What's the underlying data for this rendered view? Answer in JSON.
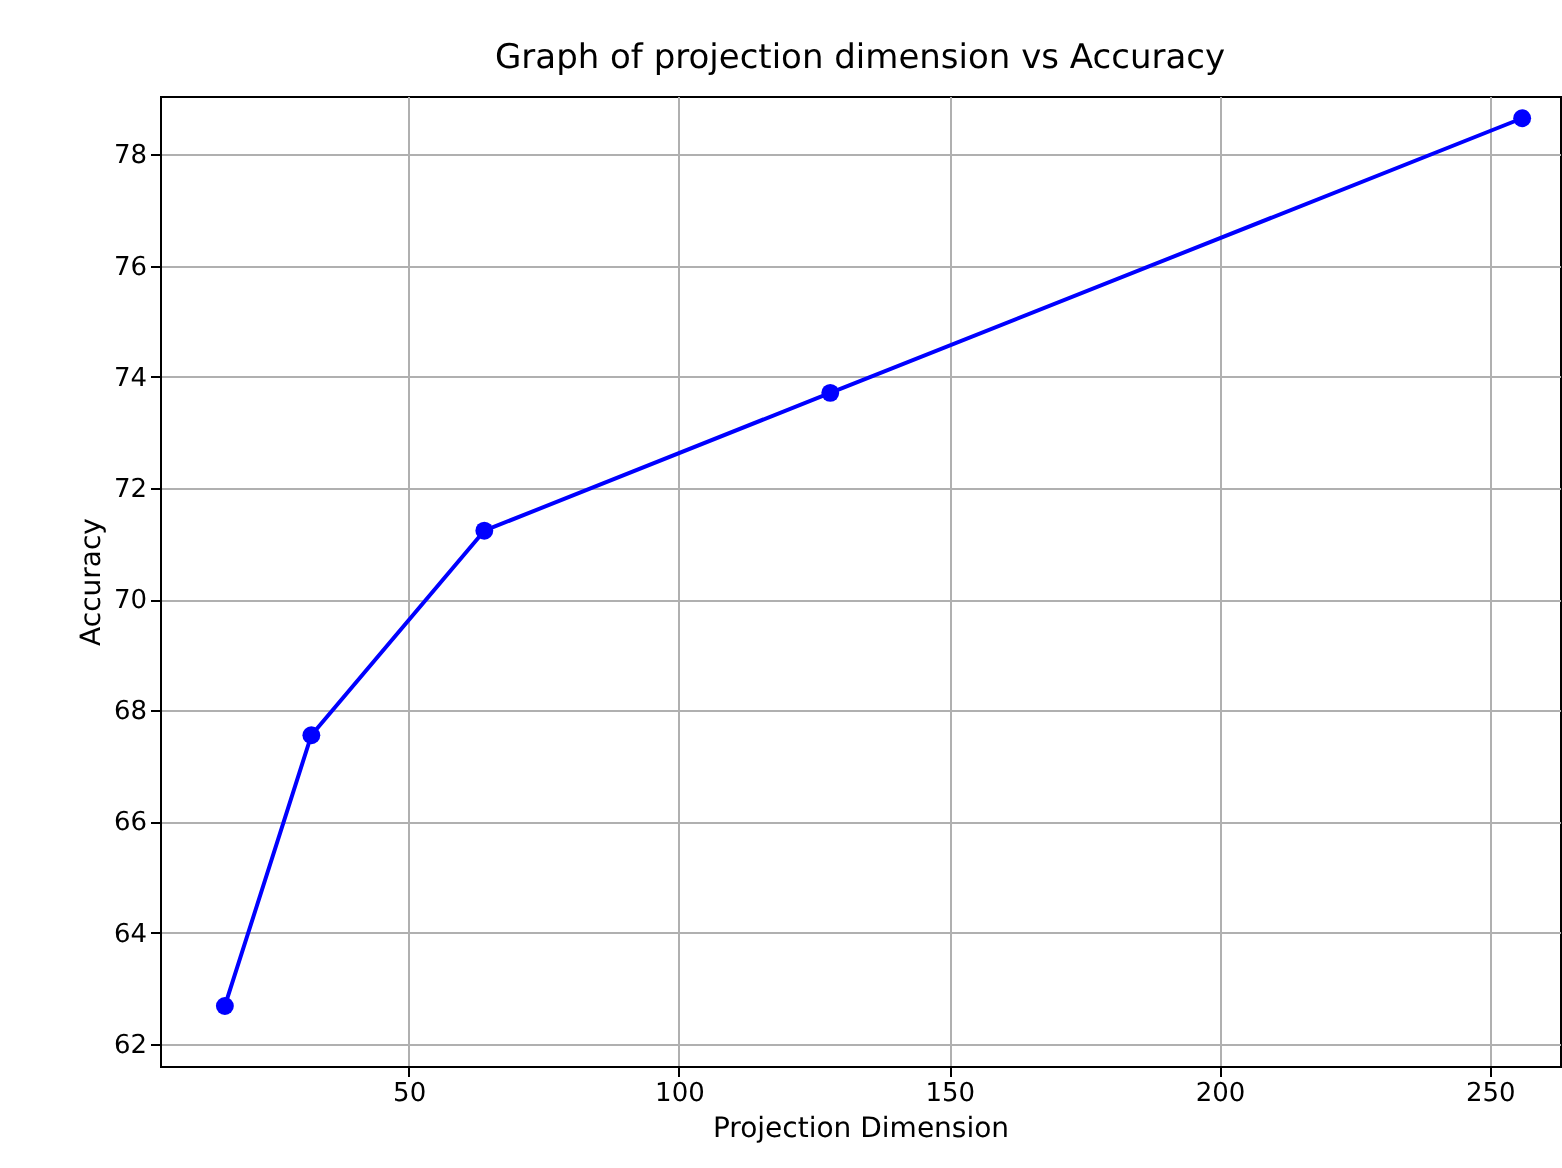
{
  "chart_data": {
    "type": "line",
    "title": "Graph of projection dimension vs Accuracy",
    "xlabel": "Projection Dimension",
    "ylabel": "Accuracy",
    "x": [
      16,
      32,
      64,
      128,
      256
    ],
    "series": [
      {
        "color": "#0000ff",
        "values": [
          62.68,
          67.55,
          71.23,
          73.71,
          78.65
        ]
      }
    ],
    "xlim": [
      4,
      263
    ],
    "xticks": [
      50,
      100,
      150,
      200,
      250
    ],
    "ylim": [
      61.6,
      79.05
    ],
    "yticks": [
      62,
      64,
      66,
      68,
      70,
      72,
      74,
      76,
      78
    ],
    "grid": true,
    "marker": "circle",
    "line_style": "solid"
  }
}
